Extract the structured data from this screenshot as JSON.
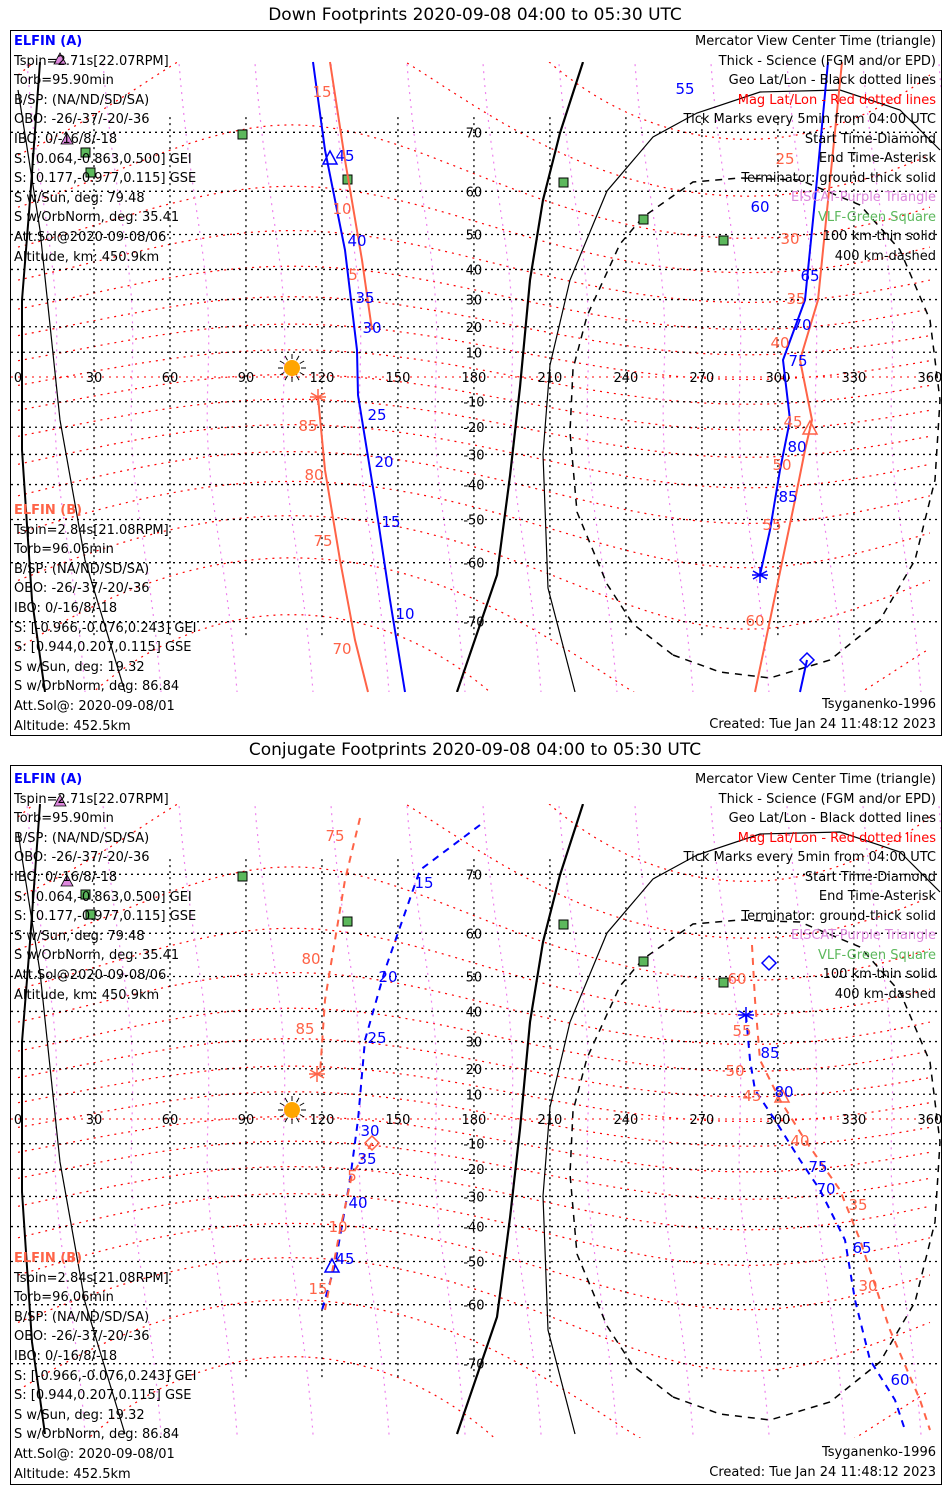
{
  "colors": {
    "elfin_a": "#0000ff",
    "elfin_b": "#ff6347",
    "geo_grid": "#000000",
    "mag_grid": "#ff0000",
    "mag_lon": "#ee82ee",
    "vlf": "#5cb85c",
    "eiscat": "#dd88dd",
    "sun": "#ffa500",
    "continents": "#aaaaaa"
  },
  "axes": {
    "lon_ticks": [
      0,
      30,
      60,
      90,
      120,
      150,
      180,
      210,
      240,
      270,
      300,
      330,
      360
    ],
    "lat_ticks": [
      70,
      60,
      50,
      40,
      30,
      20,
      10,
      -10,
      -20,
      -30,
      -40,
      -50,
      -60,
      -70
    ]
  },
  "panels": [
    {
      "title": "Down Footprints 2020-09-08 04:00 to 05:30 UTC",
      "elfin_a": {
        "name": "ELFIN (A)",
        "lines": [
          "Tspin=2.71s[22.07RPM]",
          "Torb=95.90min",
          "B/SP: (NA/ND/SD/SA)",
          "OBO: -26/-37/-20/-36",
          "IBO: 0/-16/8/-18",
          "S: [0.064,-0.863,0.500] GEI",
          "S: [0.177,-0.977,0.115] GSE",
          "S w/Sun, deg: 79.48",
          "S w/OrbNorm, deg: 35.41",
          "Att.Sol@2020-09-08/06",
          "Altitude, km: 450.9km"
        ]
      },
      "elfin_b": {
        "name": "ELFIN (B)",
        "lines": [
          "Tspin=2.84s[21.08RPM]",
          "Torb=96.06min",
          "B/SP: (NA/ND/SD/SA)",
          "OBO: -26/-37/-20/-36",
          "IBO: 0/-16/8/-18",
          "S: [-0.966,-0.076,0.243] GEI",
          "S: [0.944,0.207,0.115] GSE",
          "S w/Sun, deg: 19.32",
          "S w/OrbNorm, deg: 86.84",
          "Att.Sol@: 2020-09-08/01",
          "Altitude: 452.5km"
        ]
      },
      "legend": [
        {
          "text": "Mercator View Center Time (triangle)",
          "color": "#000000"
        },
        {
          "text": "Thick - Science (FGM and/or EPD)",
          "color": "#000000"
        },
        {
          "text": "Geo Lat/Lon - Black dotted lines",
          "color": "#000000"
        },
        {
          "text": "Mag Lat/Lon - Red dotted lines",
          "color": "#ff0000"
        },
        {
          "text": "Tick Marks every 5min from 04:00 UTC",
          "color": "#000000"
        },
        {
          "text": "Start Time-Diamond",
          "color": "#000000"
        },
        {
          "text": "End Time-Asterisk",
          "color": "#000000"
        },
        {
          "text": "Terminator: ground-thick solid",
          "color": "#000000"
        },
        {
          "text": "EISCAT-Purple Triangle",
          "color": "#dd88dd"
        },
        {
          "text": "VLF-Green Square",
          "color": "#5cb85c"
        },
        {
          "text": "100 km-thin solid",
          "color": "#000000"
        },
        {
          "text": "400 km-dashed",
          "color": "#000000"
        }
      ],
      "model": "Tsyganenko-1996",
      "created": "Created: Tue Jan 24 11:48:12 2023",
      "track_labels": {
        "a": [
          "45",
          "40",
          "35",
          "30",
          "25",
          "20",
          "15",
          "10",
          "55",
          "60",
          "65",
          "70",
          "75",
          "80",
          "85"
        ],
        "b": [
          "15",
          "10",
          "5",
          "85",
          "80",
          "75",
          "70",
          "25",
          "30",
          "35",
          "40",
          "45",
          "50",
          "55",
          "60"
        ]
      }
    },
    {
      "title": "Conjugate Footprints 2020-09-08 04:00 to 05:30 UTC",
      "elfin_a": {
        "name": "ELFIN (A)",
        "lines": [
          "Tspin=2.71s[22.07RPM]",
          "Torb=95.90min",
          "B/SP: (NA/ND/SD/SA)",
          "OBO: -26/-37/-20/-36",
          "IBO: 0/-16/8/-18",
          "S: [0.064,-0.863,0.500] GEI",
          "S: [0.177,-0.977,0.115] GSE",
          "S w/Sun, deg: 79.48",
          "S w/OrbNorm, deg: 35.41",
          "Att.Sol@2020-09-08/06",
          "Altitude, km: 450.9km"
        ]
      },
      "elfin_b": {
        "name": "ELFIN (B)",
        "lines": [
          "Tspin=2.84s[21.08RPM]",
          "Torb=96.06min",
          "B/SP: (NA/ND/SD/SA)",
          "OBO: -26/-37/-20/-36",
          "IBO: 0/-16/8/-18",
          "S: [-0.966,-0.076,0.243] GEI",
          "S: [0.944,0.207,0.115] GSE",
          "S w/Sun, deg: 19.32",
          "S w/OrbNorm, deg: 86.84",
          "Att.Sol@: 2020-09-08/01",
          "Altitude: 452.5km"
        ]
      },
      "legend": [
        {
          "text": "Mercator View Center Time (triangle)",
          "color": "#000000"
        },
        {
          "text": "Thick - Science (FGM and/or EPD)",
          "color": "#000000"
        },
        {
          "text": "Geo Lat/Lon - Black dotted lines",
          "color": "#000000"
        },
        {
          "text": "Mag Lat/Lon - Red dotted lines",
          "color": "#ff0000"
        },
        {
          "text": "Tick Marks every 5min from 04:00 UTC",
          "color": "#000000"
        },
        {
          "text": "Start Time-Diamond",
          "color": "#000000"
        },
        {
          "text": "End Time-Asterisk",
          "color": "#000000"
        },
        {
          "text": "Terminator: ground-thick solid",
          "color": "#000000"
        },
        {
          "text": "EISCAT-Purple Triangle",
          "color": "#dd88dd"
        },
        {
          "text": "VLF-Green Square",
          "color": "#5cb85c"
        },
        {
          "text": "100 km-thin solid",
          "color": "#000000"
        },
        {
          "text": "400 km-dashed",
          "color": "#000000"
        }
      ],
      "model": "Tsyganenko-1996",
      "created": "Created: Tue Jan 24 11:48:12 2023",
      "track_labels": {
        "a": [
          "15",
          "20",
          "25",
          "30",
          "35",
          "40",
          "45",
          "85",
          "80",
          "75",
          "70",
          "65",
          "60"
        ],
        "b": [
          "75",
          "80",
          "85",
          "5",
          "10",
          "15",
          "60",
          "55",
          "50",
          "45",
          "40",
          "35",
          "30"
        ]
      }
    }
  ]
}
